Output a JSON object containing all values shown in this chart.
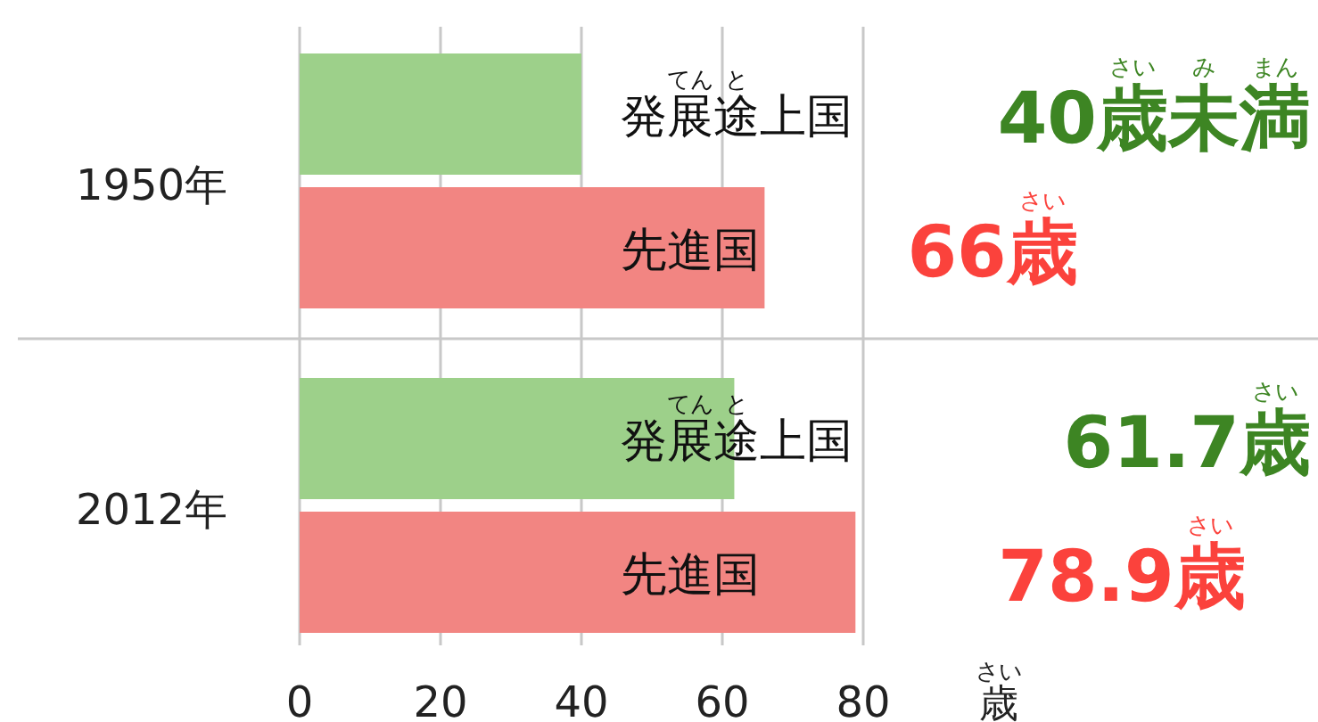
{
  "chart_data": {
    "type": "bar",
    "orientation": "horizontal",
    "categories": [
      "1950年",
      "2012年"
    ],
    "series": [
      {
        "name": "発展途上国",
        "color": "#9dd08a",
        "values": [
          40,
          61.7
        ],
        "value_labels": [
          "40歳未満",
          "61.7歳"
        ]
      },
      {
        "name": "先進国",
        "color": "#f28582",
        "values": [
          66,
          78.9
        ],
        "value_labels": [
          "66歳",
          "78.9歳"
        ]
      }
    ],
    "xlabel": "歳",
    "xlim": [
      0,
      80
    ],
    "xticks": [
      0,
      20,
      40,
      60,
      80
    ],
    "grid": "x",
    "legend": false,
    "annotations": [
      "てん",
      "と",
      "さい",
      "み",
      "まん"
    ]
  }
}
